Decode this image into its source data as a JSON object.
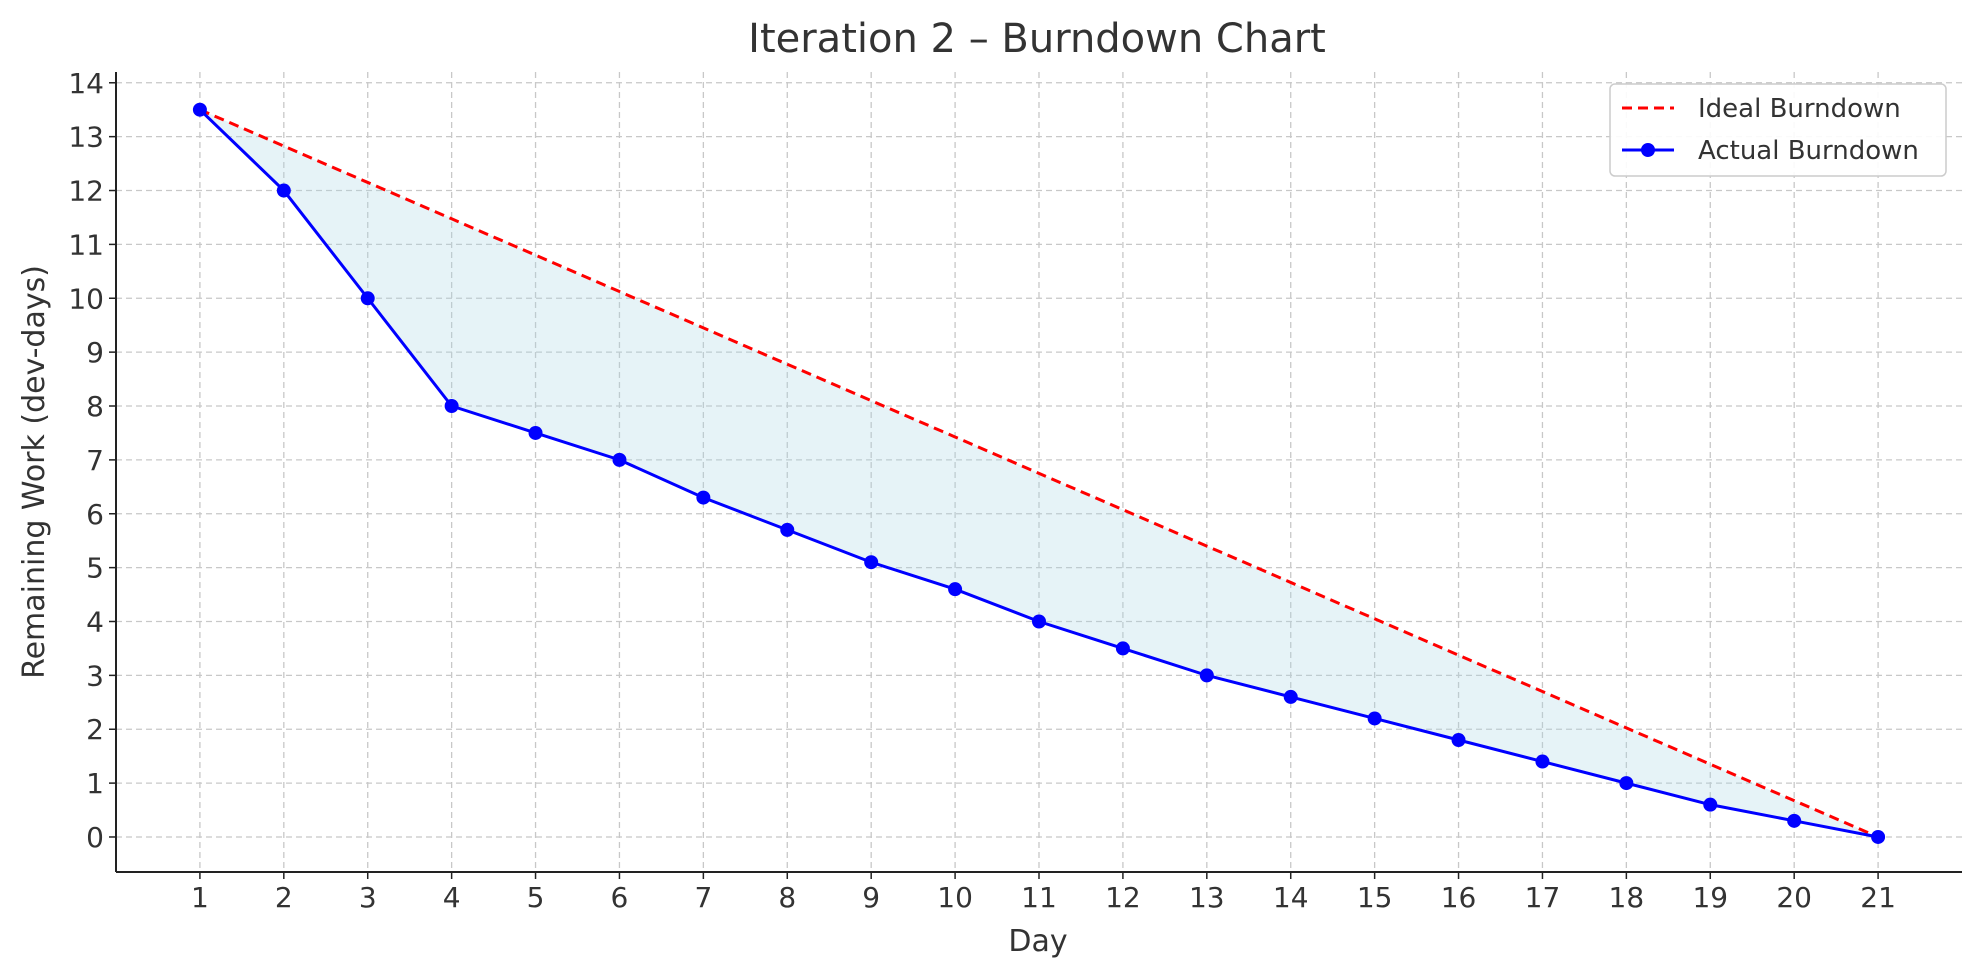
{
  "chart_data": {
    "type": "line",
    "title": "Iteration 2 – Burndown Chart",
    "xlabel": "Day",
    "ylabel": "Remaining Work (dev-days)",
    "x": [
      1,
      2,
      3,
      4,
      5,
      6,
      7,
      8,
      9,
      10,
      11,
      12,
      13,
      14,
      15,
      16,
      17,
      18,
      19,
      20,
      21
    ],
    "xlim": [
      0,
      22
    ],
    "ylim": [
      -0.65,
      14.2
    ],
    "xticks": [
      1,
      2,
      3,
      4,
      5,
      6,
      7,
      8,
      9,
      10,
      11,
      12,
      13,
      14,
      15,
      16,
      17,
      18,
      19,
      20,
      21
    ],
    "yticks": [
      0,
      1,
      2,
      3,
      4,
      5,
      6,
      7,
      8,
      9,
      10,
      11,
      12,
      13,
      14
    ],
    "grid": true,
    "legend_position": "top-right",
    "fill_between": {
      "color": "#add8e6",
      "opacity": 0.3
    },
    "series": [
      {
        "name": "Ideal Burndown",
        "color": "#ff0000",
        "style": "dashed",
        "markers": false,
        "values": [
          13.5,
          12.825,
          12.15,
          11.475,
          10.8,
          10.125,
          9.45,
          8.775,
          8.1,
          7.425,
          6.75,
          6.075,
          5.4,
          4.725,
          4.05,
          3.375,
          2.7,
          2.025,
          1.35,
          0.675,
          0
        ]
      },
      {
        "name": "Actual Burndown",
        "color": "#0000ff",
        "style": "solid",
        "markers": true,
        "values": [
          13.5,
          12,
          10,
          8,
          7.5,
          7,
          6.3,
          5.7,
          5.1,
          4.6,
          4,
          3.5,
          3,
          2.6,
          2.2,
          1.8,
          1.4,
          1,
          0.6,
          0.3,
          0
        ]
      }
    ]
  }
}
